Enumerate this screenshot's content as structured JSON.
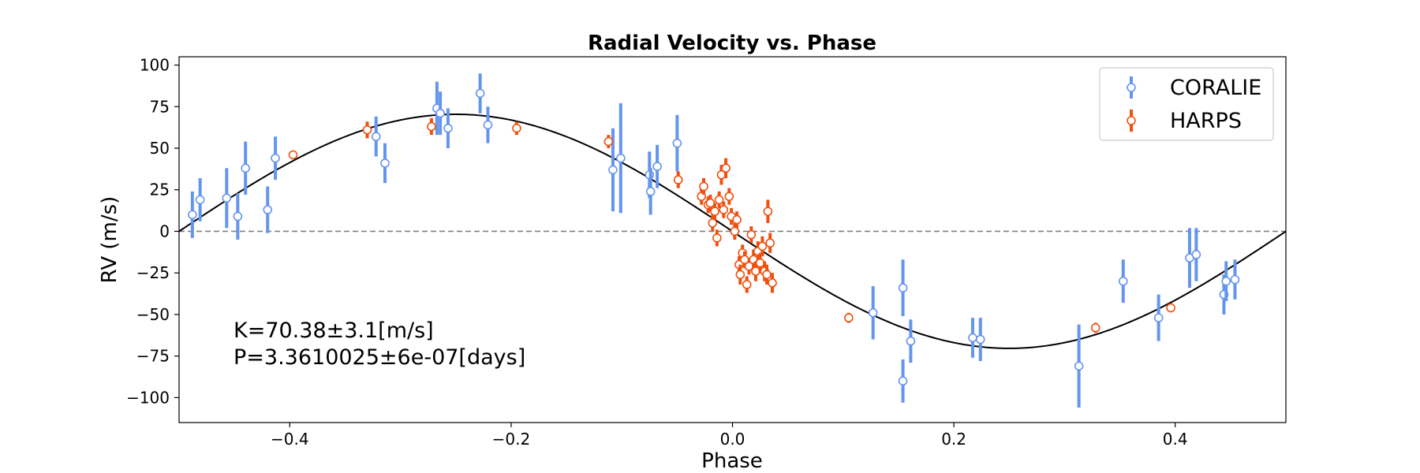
{
  "chart_data": {
    "type": "scatter",
    "title": "Radial Velocity vs. Phase",
    "xlabel": "Phase",
    "ylabel": "RV (m/s)",
    "xlim": [
      -0.5,
      0.5
    ],
    "ylim": [
      -115,
      105
    ],
    "x_ticks": [
      -0.4,
      -0.2,
      0.0,
      0.2,
      0.4
    ],
    "x_tick_labels": [
      "−0.4",
      "−0.2",
      "0.0",
      "0.2",
      "0.4"
    ],
    "y_ticks": [
      100,
      75,
      50,
      25,
      0,
      -25,
      -50,
      -75,
      -100
    ],
    "y_tick_labels": [
      "100",
      "75",
      "50",
      "25",
      "0",
      "−25",
      "−50",
      "−75",
      "−100"
    ],
    "grid": false,
    "legend_position": "top-right",
    "zero_line": {
      "y": 0,
      "style": "dashed",
      "color": "#808080"
    },
    "model": {
      "type": "sine",
      "amplitude": 70.38,
      "peak_phase": -0.25,
      "color": "#000000"
    },
    "annotations": [
      "K=70.38±3.1[m/s]",
      "P=3.3610025±6e-07[days]"
    ],
    "series": [
      {
        "name": "CORALIE",
        "color": "#6495ED",
        "points": [
          {
            "x": -0.488,
            "y": 10,
            "err": 14
          },
          {
            "x": -0.481,
            "y": 19,
            "err": 13
          },
          {
            "x": -0.457,
            "y": 20,
            "err": 18
          },
          {
            "x": -0.447,
            "y": 9,
            "err": 14
          },
          {
            "x": -0.44,
            "y": 38,
            "err": 16
          },
          {
            "x": -0.42,
            "y": 13,
            "err": 14
          },
          {
            "x": -0.413,
            "y": 44,
            "err": 13
          },
          {
            "x": -0.322,
            "y": 57,
            "err": 12
          },
          {
            "x": -0.314,
            "y": 41,
            "err": 12
          },
          {
            "x": -0.267,
            "y": 74,
            "err": 16
          },
          {
            "x": -0.264,
            "y": 71,
            "err": 13
          },
          {
            "x": -0.257,
            "y": 62,
            "err": 12
          },
          {
            "x": -0.228,
            "y": 83,
            "err": 12
          },
          {
            "x": -0.221,
            "y": 64,
            "err": 11
          },
          {
            "x": -0.108,
            "y": 37,
            "err": 25
          },
          {
            "x": -0.101,
            "y": 44,
            "err": 33
          },
          {
            "x": -0.075,
            "y": 34,
            "err": 14
          },
          {
            "x": -0.074,
            "y": 24,
            "err": 14
          },
          {
            "x": -0.068,
            "y": 39,
            "err": 13
          },
          {
            "x": -0.05,
            "y": 53,
            "err": 17
          },
          {
            "x": 0.127,
            "y": -49,
            "err": 16
          },
          {
            "x": 0.154,
            "y": -34,
            "err": 17
          },
          {
            "x": 0.154,
            "y": -90,
            "err": 13
          },
          {
            "x": 0.161,
            "y": -66,
            "err": 13
          },
          {
            "x": 0.217,
            "y": -64,
            "err": 12
          },
          {
            "x": 0.224,
            "y": -65,
            "err": 13
          },
          {
            "x": 0.313,
            "y": -81,
            "err": 25
          },
          {
            "x": 0.353,
            "y": -30,
            "err": 13
          },
          {
            "x": 0.385,
            "y": -52,
            "err": 14
          },
          {
            "x": 0.413,
            "y": -16,
            "err": 18
          },
          {
            "x": 0.419,
            "y": -14,
            "err": 16
          },
          {
            "x": 0.444,
            "y": -38,
            "err": 12
          },
          {
            "x": 0.446,
            "y": -30,
            "err": 12
          },
          {
            "x": 0.454,
            "y": -29,
            "err": 12
          }
        ]
      },
      {
        "name": "HARPS",
        "color": "#F0500F",
        "points": [
          {
            "x": -0.397,
            "y": 46,
            "err": 2
          },
          {
            "x": -0.33,
            "y": 61,
            "err": 5
          },
          {
            "x": -0.272,
            "y": 63,
            "err": 5
          },
          {
            "x": -0.195,
            "y": 62,
            "err": 4
          },
          {
            "x": -0.112,
            "y": 54,
            "err": 4
          },
          {
            "x": -0.049,
            "y": 31,
            "err": 5
          },
          {
            "x": -0.028,
            "y": 21,
            "err": 5
          },
          {
            "x": -0.026,
            "y": 27,
            "err": 5
          },
          {
            "x": -0.022,
            "y": 16,
            "err": 5
          },
          {
            "x": -0.02,
            "y": 17,
            "err": 5
          },
          {
            "x": -0.018,
            "y": 5,
            "err": 5
          },
          {
            "x": -0.016,
            "y": 12,
            "err": 5
          },
          {
            "x": -0.014,
            "y": -4,
            "err": 5
          },
          {
            "x": -0.012,
            "y": 19,
            "err": 5
          },
          {
            "x": -0.01,
            "y": 34,
            "err": 6
          },
          {
            "x": -0.008,
            "y": 13,
            "err": 5
          },
          {
            "x": -0.006,
            "y": 38,
            "err": 6
          },
          {
            "x": -0.003,
            "y": 21,
            "err": 5
          },
          {
            "x": -0.001,
            "y": 9,
            "err": 5
          },
          {
            "x": 0.002,
            "y": 0,
            "err": 5
          },
          {
            "x": 0.004,
            "y": 7,
            "err": 5
          },
          {
            "x": 0.006,
            "y": -20,
            "err": 5
          },
          {
            "x": 0.007,
            "y": -26,
            "err": 6
          },
          {
            "x": 0.009,
            "y": -13,
            "err": 5
          },
          {
            "x": 0.011,
            "y": -17,
            "err": 5
          },
          {
            "x": 0.013,
            "y": -32,
            "err": 5
          },
          {
            "x": 0.015,
            "y": -21,
            "err": 5
          },
          {
            "x": 0.017,
            "y": -2,
            "err": 5
          },
          {
            "x": 0.019,
            "y": -17,
            "err": 6
          },
          {
            "x": 0.021,
            "y": -24,
            "err": 6
          },
          {
            "x": 0.023,
            "y": -12,
            "err": 6
          },
          {
            "x": 0.025,
            "y": -19,
            "err": 6
          },
          {
            "x": 0.027,
            "y": -9,
            "err": 6
          },
          {
            "x": 0.029,
            "y": -24,
            "err": 6
          },
          {
            "x": 0.031,
            "y": -26,
            "err": 6
          },
          {
            "x": 0.032,
            "y": 12,
            "err": 7
          },
          {
            "x": 0.034,
            "y": -7,
            "err": 6
          },
          {
            "x": 0.036,
            "y": -31,
            "err": 6
          },
          {
            "x": 0.105,
            "y": -52,
            "err": 3
          },
          {
            "x": 0.328,
            "y": -58,
            "err": 3
          },
          {
            "x": 0.396,
            "y": -46,
            "err": 2
          }
        ]
      }
    ]
  }
}
